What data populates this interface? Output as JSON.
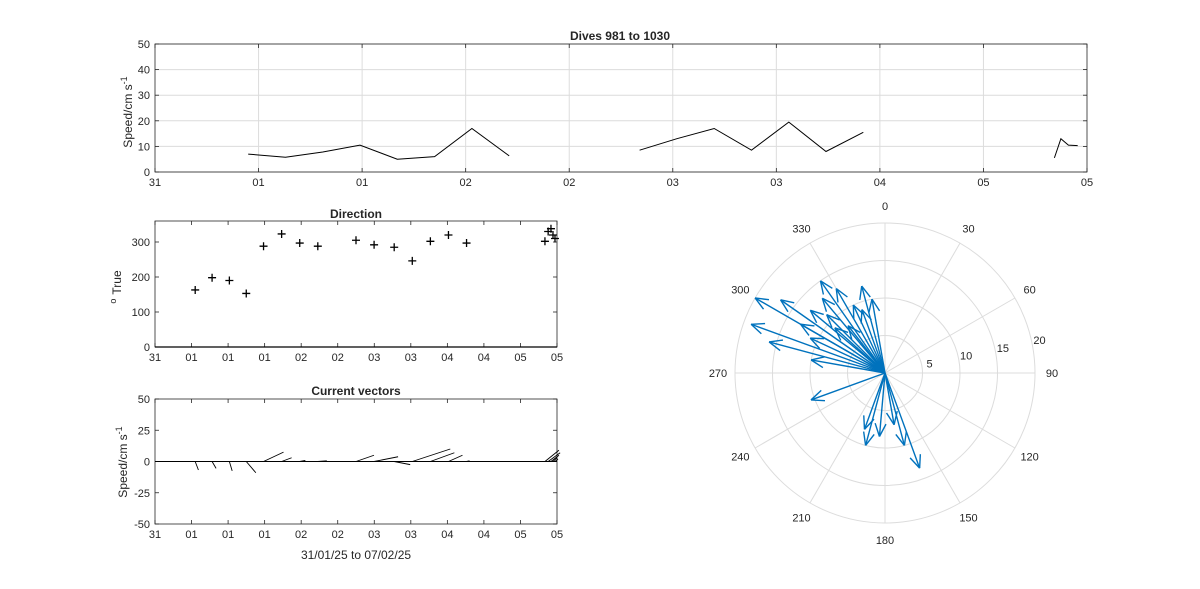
{
  "colors": {
    "axis": "#262626",
    "grid": "#dcdcdc",
    "line": "#000000",
    "arrow": "#0072bd"
  },
  "chart_data": [
    {
      "type": "line",
      "title": "Dives 981 to 1030",
      "xlabel": "",
      "ylabel": "Speed/cm s",
      "ylabel_sup": "-1",
      "ylim": [
        0,
        50
      ],
      "xlim": [
        0,
        10
      ],
      "yticks": [
        0,
        10,
        20,
        30,
        40,
        50
      ],
      "xtick_labels": [
        "31",
        "01",
        "01",
        "02",
        "02",
        "03",
        "03",
        "04",
        "05",
        "05"
      ],
      "grid": true,
      "segments": [
        [
          [
            1.0,
            7
          ],
          [
            1.4,
            5.8
          ],
          [
            1.8,
            7.8
          ],
          [
            2.2,
            10.5
          ],
          [
            2.6,
            5
          ],
          [
            3.0,
            6
          ],
          [
            3.4,
            17
          ],
          [
            3.8,
            6.3
          ]
        ],
        [
          [
            5.2,
            8.5
          ],
          [
            5.6,
            13
          ],
          [
            6.0,
            17
          ],
          [
            6.4,
            8.5
          ],
          [
            6.8,
            19.5
          ],
          [
            7.2,
            8
          ],
          [
            7.6,
            15.5
          ]
        ],
        [
          [
            9.65,
            5.5
          ],
          [
            9.72,
            13
          ],
          [
            9.8,
            10.5
          ],
          [
            9.9,
            10.3
          ]
        ]
      ]
    },
    {
      "type": "scatter",
      "title": "Direction",
      "xlabel": "",
      "ylabel": "True",
      "ylabel_sup": "o",
      "ylim": [
        0,
        360
      ],
      "xlim": [
        0,
        10
      ],
      "yticks": [
        0,
        100,
        200,
        300
      ],
      "xtick_labels": [
        "31",
        "01",
        "01",
        "01",
        "02",
        "02",
        "03",
        "03",
        "04",
        "04",
        "05",
        "05"
      ],
      "grid": false,
      "marker": "+",
      "points": [
        [
          1.0,
          163
        ],
        [
          1.42,
          198
        ],
        [
          1.85,
          190
        ],
        [
          2.27,
          153
        ],
        [
          2.7,
          288
        ],
        [
          3.15,
          323
        ],
        [
          3.6,
          297
        ],
        [
          4.05,
          288
        ],
        [
          5.0,
          305
        ],
        [
          5.45,
          292
        ],
        [
          5.95,
          285
        ],
        [
          6.4,
          246
        ],
        [
          6.85,
          302
        ],
        [
          7.3,
          320
        ],
        [
          7.75,
          297
        ],
        [
          9.7,
          302
        ],
        [
          9.78,
          330
        ],
        [
          9.85,
          338
        ],
        [
          9.9,
          320
        ],
        [
          9.95,
          310
        ]
      ]
    },
    {
      "type": "quiver",
      "title": "Current vectors",
      "xlabel": "31/01/25 to 07/02/25",
      "ylabel": "Speed/cm s",
      "ylabel_sup": "-1",
      "ylim": [
        -50,
        50
      ],
      "xlim": [
        0,
        10
      ],
      "yticks": [
        -50,
        -25,
        0,
        25,
        50
      ],
      "xtick_labels": [
        "31",
        "01",
        "01",
        "01",
        "02",
        "02",
        "03",
        "03",
        "04",
        "04",
        "05",
        "05"
      ],
      "grid": false,
      "vectors": [
        [
          1.0,
          1.6,
          -6.8
        ],
        [
          1.42,
          2.0,
          -5.5
        ],
        [
          1.85,
          1.4,
          -7.5
        ],
        [
          2.27,
          4.8,
          -9.0
        ],
        [
          2.7,
          10.0,
          7.5
        ],
        [
          3.15,
          5.0,
          3.0
        ],
        [
          3.6,
          2.8,
          0.8
        ],
        [
          4.05,
          4.5,
          0.5
        ],
        [
          5.0,
          9.0,
          5.0
        ],
        [
          5.45,
          12.0,
          3.8
        ],
        [
          5.95,
          8.0,
          -2.5
        ],
        [
          6.4,
          19.0,
          10.0
        ],
        [
          6.85,
          12.0,
          7.0
        ],
        [
          7.3,
          7.0,
          5.0
        ],
        [
          7.75,
          1.5,
          0.5
        ],
        [
          9.7,
          7.0,
          9.0
        ],
        [
          9.78,
          6.0,
          7.0
        ],
        [
          9.85,
          4.0,
          5.0
        ],
        [
          9.9,
          2.0,
          3.0
        ],
        [
          9.95,
          1.5,
          2.0
        ]
      ]
    },
    {
      "type": "compass",
      "rlim": [
        0,
        20
      ],
      "rings": [
        5,
        10,
        15,
        20
      ],
      "ring_labels": [
        "5",
        "10",
        "15",
        "20"
      ],
      "angle_labels": [
        "0",
        "30",
        "60",
        "90",
        "120",
        "150",
        "180",
        "210",
        "240",
        "270",
        "300",
        "330"
      ],
      "vectors": [
        [
          300,
          20
        ],
        [
          290,
          19
        ],
        [
          285,
          16
        ],
        [
          305,
          17
        ],
        [
          310,
          13
        ],
        [
          315,
          11
        ],
        [
          320,
          13
        ],
        [
          325,
          15
        ],
        [
          330,
          13
        ],
        [
          335,
          10
        ],
        [
          340,
          9
        ],
        [
          345,
          12
        ],
        [
          350,
          10
        ],
        [
          300,
          13
        ],
        [
          295,
          11
        ],
        [
          312,
          9
        ],
        [
          322,
          8
        ],
        [
          280,
          10
        ],
        [
          250,
          10.5
        ],
        [
          200,
          8
        ],
        [
          195,
          10
        ],
        [
          185,
          8.5
        ],
        [
          160,
          13.5
        ],
        [
          165,
          10
        ],
        [
          170,
          7
        ]
      ]
    }
  ]
}
